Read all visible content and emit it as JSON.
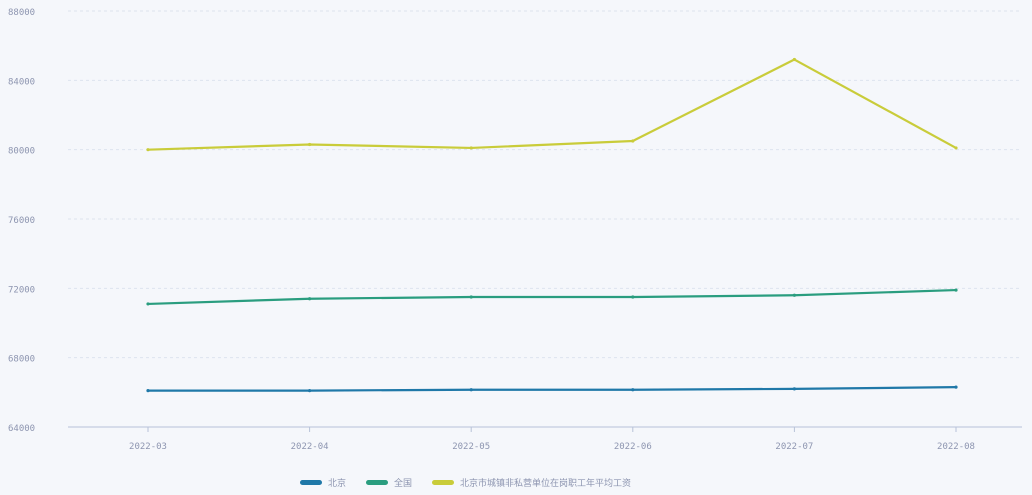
{
  "chart_data": {
    "type": "line",
    "title": "",
    "xlabel": "",
    "ylabel": "",
    "categories": [
      "2022-03",
      "2022-04",
      "2022-05",
      "2022-06",
      "2022-07",
      "2022-08"
    ],
    "y_ticks": [
      64000,
      68000,
      72000,
      76000,
      80000,
      84000,
      88000
    ],
    "y_tick_labels": [
      "64000",
      "68000",
      "72000",
      "76000",
      "80000",
      "84000",
      "88000"
    ],
    "ylim": [
      64000,
      88000
    ],
    "grid": true,
    "legend_position": "bottom",
    "series": [
      {
        "name": "北京",
        "color": "#1f78a8",
        "values": [
          66100,
          66100,
          66150,
          66150,
          66200,
          66300
        ]
      },
      {
        "name": "全国",
        "color": "#2a9d7f",
        "values": [
          71100,
          71400,
          71500,
          71500,
          71600,
          71900
        ]
      },
      {
        "name": "北京市城镇非私营单位在岗职工年平均工资",
        "color": "#c9cc3a",
        "values": [
          80000,
          80300,
          80100,
          80500,
          85200,
          80100
        ]
      }
    ]
  }
}
